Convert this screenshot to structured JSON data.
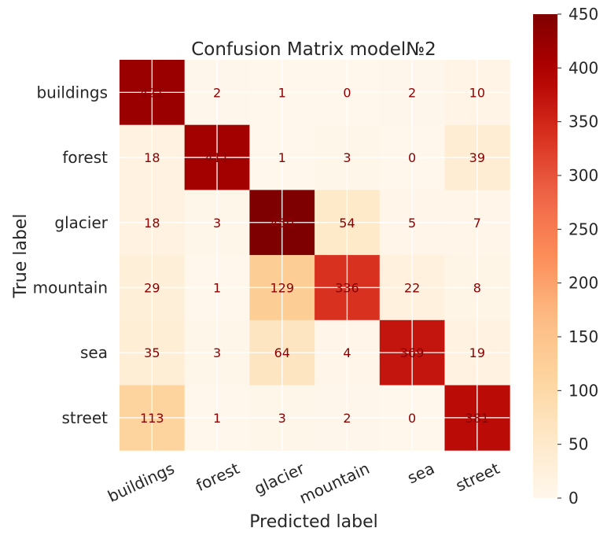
{
  "chart_data": {
    "type": "heatmap",
    "title": "Confusion Matrix model№2",
    "xlabel": "Predicted label",
    "ylabel": "True label",
    "x_categories": [
      "buildings",
      "forest",
      "glacier",
      "mountain",
      "sea",
      "street"
    ],
    "y_categories": [
      "buildings",
      "forest",
      "glacier",
      "mountain",
      "sea",
      "street"
    ],
    "values": [
      [
        421,
        2,
        1,
        0,
        2,
        10
      ],
      [
        18,
        411,
        1,
        3,
        0,
        39
      ],
      [
        18,
        3,
        450,
        54,
        5,
        7
      ],
      [
        29,
        1,
        129,
        336,
        22,
        8
      ],
      [
        35,
        3,
        64,
        4,
        369,
        19
      ],
      [
        113,
        1,
        3,
        2,
        0,
        381
      ]
    ],
    "colormap": "OrRd",
    "colorbar": {
      "range": [
        0,
        450
      ],
      "ticks": [
        0,
        50,
        100,
        150,
        200,
        250,
        300,
        350,
        400,
        450
      ]
    },
    "cell_text_color": "#8b0000",
    "grid": true
  }
}
